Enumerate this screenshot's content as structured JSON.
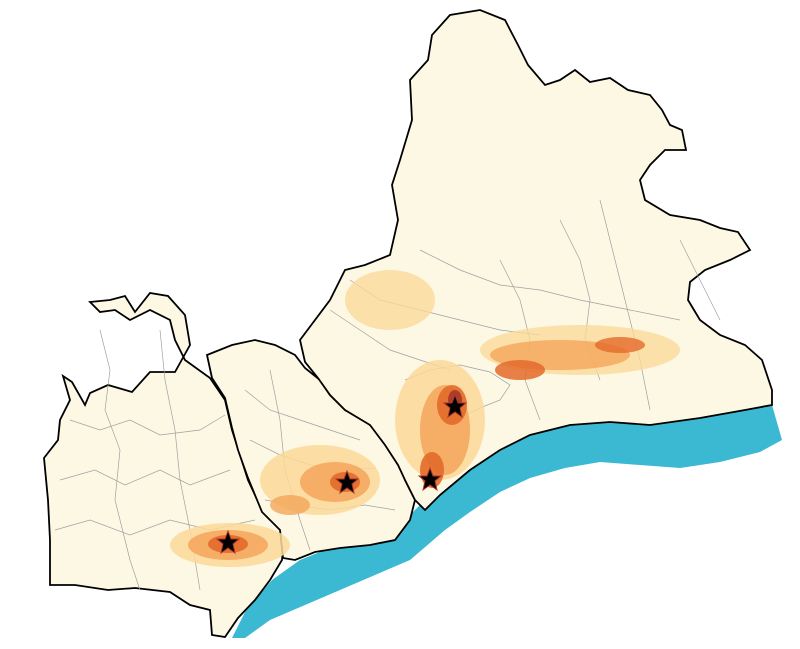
{
  "map": {
    "colors": {
      "land": "#fdf8e4",
      "sea": "#3bb8d2",
      "border": "#000000",
      "inner_border": "#9a9a9a",
      "density_low": "#fbd99a",
      "density_mid": "#f4a55a",
      "density_high": "#e36a2a",
      "density_peak": "#a9352a"
    },
    "markers": [
      {
        "name": "city-marker-west",
        "icon": "star-icon"
      },
      {
        "name": "city-marker-central",
        "icon": "star-icon"
      },
      {
        "name": "city-marker-coast",
        "icon": "star-icon"
      },
      {
        "name": "city-marker-east",
        "icon": "star-icon"
      }
    ]
  }
}
